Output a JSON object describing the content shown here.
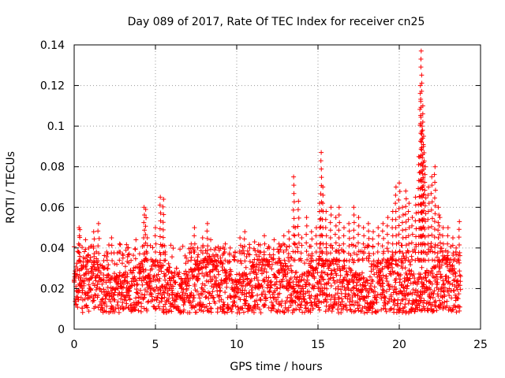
{
  "chart_data": {
    "type": "scatter",
    "title": "Day 089 of 2017, Rate Of TEC Index for receiver cn25",
    "xlabel": "GPS time / hours",
    "ylabel": "ROTI / TECUs",
    "xlim": [
      0,
      25
    ],
    "ylim": [
      0,
      0.14
    ],
    "x_ticks": [
      0,
      5,
      10,
      15,
      20,
      25
    ],
    "x_tick_labels": [
      "0",
      "5",
      "10",
      "15",
      "20",
      "25"
    ],
    "y_ticks": [
      0,
      0.02,
      0.04,
      0.06,
      0.08,
      0.1,
      0.12,
      0.14
    ],
    "y_tick_labels": [
      "0",
      "0.02",
      "0.04",
      "0.06",
      "0.08",
      "0.1",
      "0.12",
      "0.14"
    ],
    "grid": true,
    "marker": "+",
    "marker_color": "#ff0000",
    "series": [
      {
        "name": "ROTI",
        "x": [
          0.1,
          0.3,
          0.35,
          0.45,
          0.5,
          0.7,
          0.9,
          1.0,
          1.2,
          1.5,
          1.8,
          2.0,
          2.3,
          2.5,
          2.8,
          3.0,
          3.3,
          3.5,
          3.8,
          4.0,
          4.3,
          4.4,
          4.5,
          4.7,
          5.0,
          5.3,
          5.5,
          5.6,
          5.8,
          6.0,
          6.3,
          6.6,
          6.9,
          7.2,
          7.4,
          7.6,
          7.9,
          8.2,
          8.4,
          8.7,
          9.0,
          9.3,
          9.6,
          9.9,
          10.2,
          10.5,
          10.8,
          11.1,
          11.4,
          11.7,
          12.0,
          12.3,
          12.6,
          12.9,
          13.2,
          13.5,
          13.6,
          13.8,
          14.0,
          14.3,
          14.6,
          14.9,
          15.1,
          15.2,
          15.3,
          15.5,
          15.8,
          16.1,
          16.3,
          16.6,
          16.9,
          17.2,
          17.5,
          17.8,
          18.1,
          18.4,
          18.7,
          19.0,
          19.3,
          19.6,
          19.8,
          20.0,
          20.2,
          20.4,
          20.6,
          20.8,
          21.0,
          21.2,
          21.3,
          21.35,
          21.4,
          21.45,
          21.5,
          21.6,
          21.8,
          22.0,
          22.2,
          22.4,
          22.5,
          22.7,
          23.0,
          23.3,
          23.5,
          23.7
        ],
        "y": [
          0.012,
          0.05,
          0.049,
          0.03,
          0.018,
          0.044,
          0.04,
          0.02,
          0.048,
          0.052,
          0.03,
          0.038,
          0.045,
          0.025,
          0.042,
          0.035,
          0.04,
          0.028,
          0.044,
          0.03,
          0.06,
          0.059,
          0.045,
          0.02,
          0.05,
          0.065,
          0.064,
          0.038,
          0.028,
          0.025,
          0.03,
          0.02,
          0.035,
          0.042,
          0.05,
          0.04,
          0.045,
          0.052,
          0.044,
          0.04,
          0.035,
          0.042,
          0.04,
          0.038,
          0.045,
          0.048,
          0.04,
          0.043,
          0.038,
          0.046,
          0.04,
          0.044,
          0.042,
          0.046,
          0.048,
          0.075,
          0.05,
          0.063,
          0.045,
          0.055,
          0.048,
          0.05,
          0.062,
          0.087,
          0.07,
          0.058,
          0.06,
          0.055,
          0.06,
          0.05,
          0.052,
          0.06,
          0.055,
          0.05,
          0.052,
          0.048,
          0.05,
          0.052,
          0.055,
          0.058,
          0.07,
          0.072,
          0.06,
          0.068,
          0.062,
          0.055,
          0.065,
          0.085,
          0.12,
          0.137,
          0.1,
          0.11,
          0.095,
          0.08,
          0.07,
          0.075,
          0.08,
          0.06,
          0.055,
          0.05,
          0.05,
          0.045,
          0.04,
          0.053
        ],
        "baseline_y": [
          0.008,
          0.012,
          0.018,
          0.022,
          0.028
        ]
      }
    ]
  }
}
